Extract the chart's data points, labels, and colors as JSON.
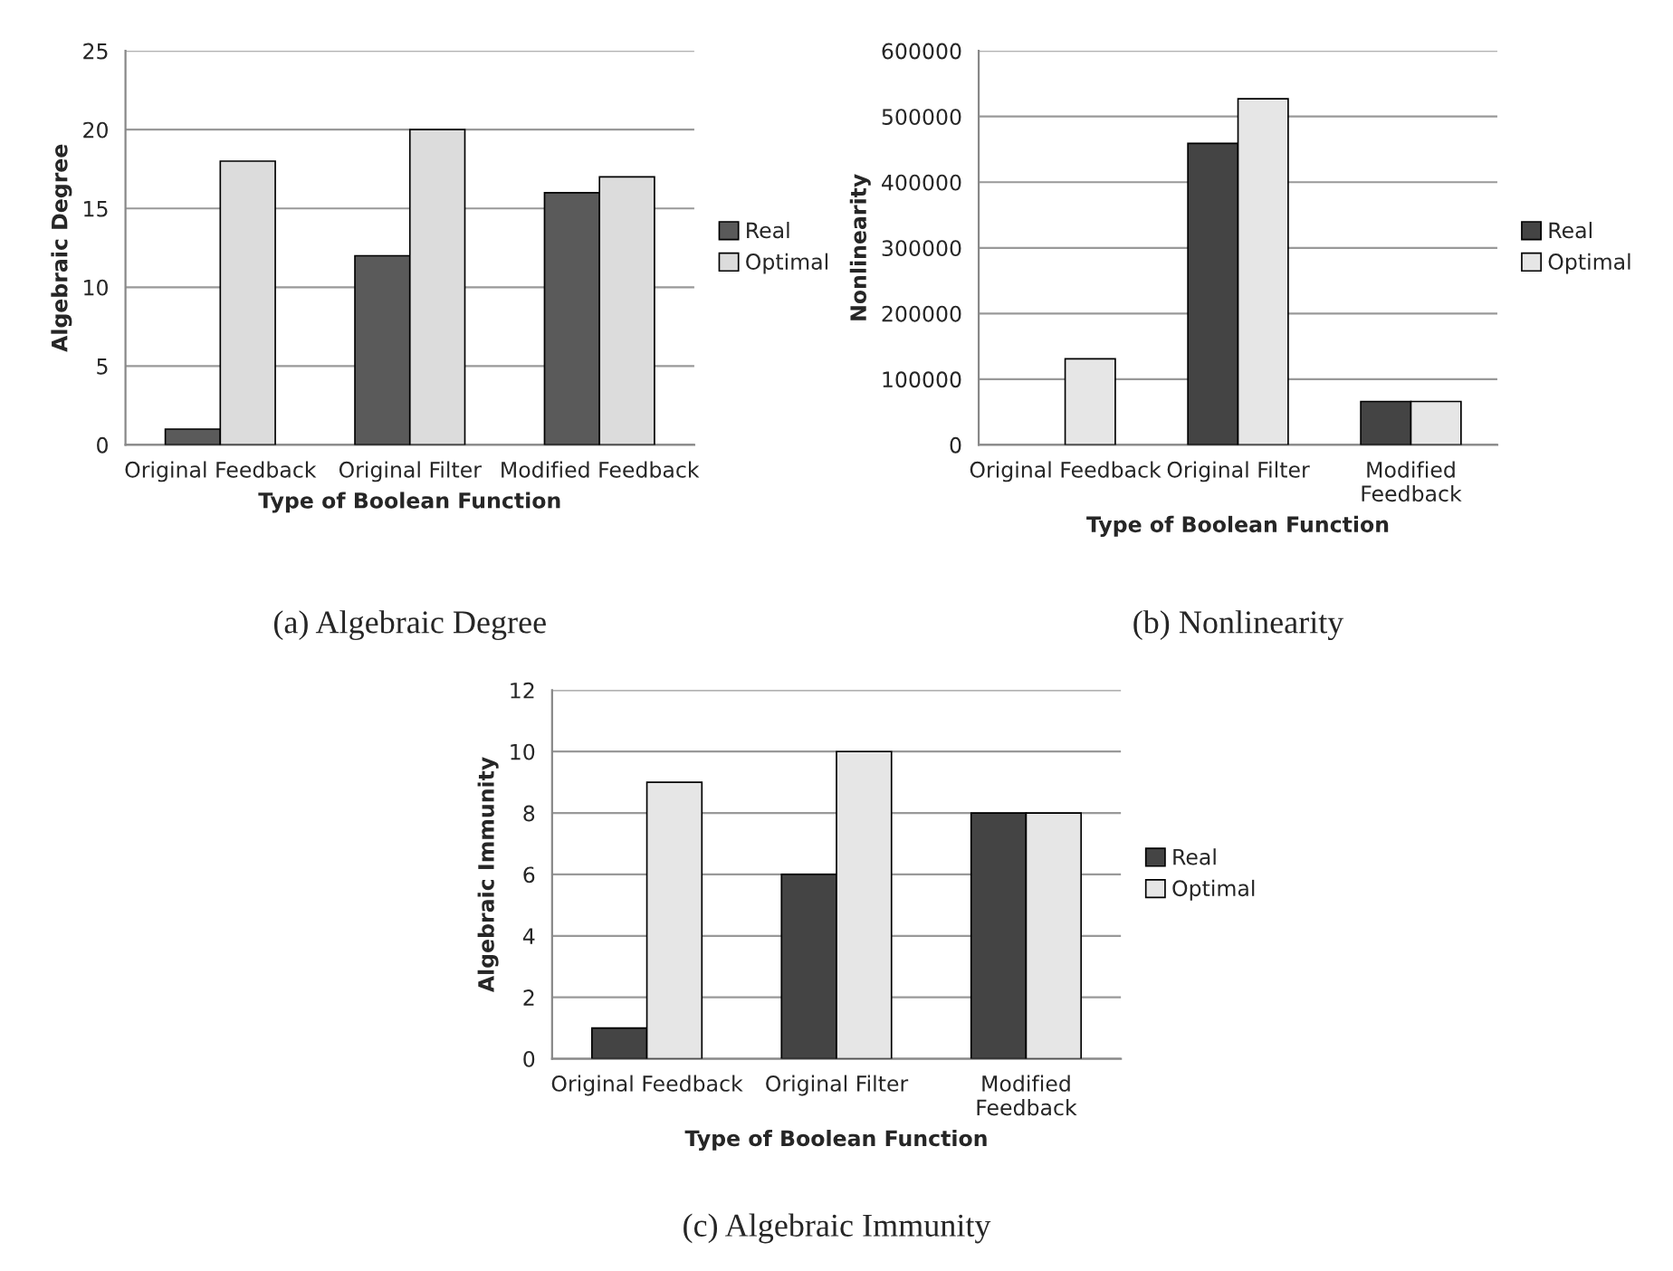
{
  "chart_data": [
    {
      "type": "bar",
      "title": "(a) Algebraic Degree",
      "xlabel": "Type of Boolean Function",
      "ylabel": "Algebraic Degree",
      "categories": [
        "Original Feedback",
        "Original Filter",
        "Modified Feedback"
      ],
      "series": [
        {
          "name": "Real",
          "color": "#5a5a5a",
          "values": [
            1,
            12,
            16
          ]
        },
        {
          "name": "Optimal",
          "color": "#dcdcdc",
          "values": [
            18,
            20,
            17
          ]
        }
      ],
      "ylim": [
        0,
        25
      ],
      "yticks": [
        0,
        5,
        10,
        15,
        20,
        25
      ],
      "grid": "y",
      "legend": "right"
    },
    {
      "type": "bar",
      "title": "(b) Nonlinearity",
      "xlabel": "Type of Boolean Function",
      "ylabel": "Nonlinearity",
      "categories": [
        "Original Feedback",
        "Original Filter",
        "Modified\nFeedback"
      ],
      "series": [
        {
          "name": "Real",
          "color": "#444444",
          "values": [
            null,
            459000,
            66000
          ]
        },
        {
          "name": "Optimal",
          "color": "#e6e6e6",
          "values": [
            131000,
            527000,
            66000
          ]
        }
      ],
      "ylim": [
        0,
        600000
      ],
      "yticks": [
        0,
        100000,
        200000,
        300000,
        400000,
        500000,
        600000
      ],
      "grid": "y",
      "legend": "right"
    },
    {
      "type": "bar",
      "title": "(c) Algebraic Immunity",
      "xlabel": "Type of Boolean Function",
      "ylabel": "Algebraic Immunity",
      "categories": [
        "Original Feedback",
        "Original Filter",
        "Modified\nFeedback"
      ],
      "series": [
        {
          "name": "Real",
          "color": "#444444",
          "values": [
            1,
            6,
            8
          ]
        },
        {
          "name": "Optimal",
          "color": "#e6e6e6",
          "values": [
            9,
            10,
            8
          ]
        }
      ],
      "ylim": [
        0,
        12
      ],
      "yticks": [
        0,
        2,
        4,
        6,
        8,
        10,
        12
      ],
      "grid": "y",
      "legend": "right"
    }
  ]
}
